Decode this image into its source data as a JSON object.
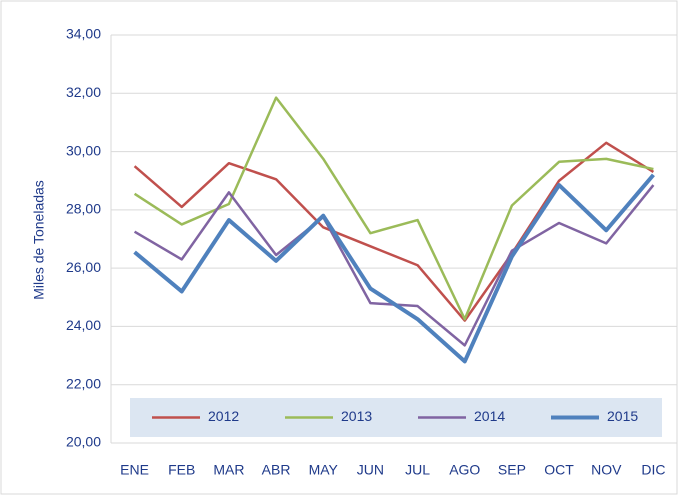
{
  "chart_data": {
    "type": "line",
    "y_label": "Miles de Toneladas",
    "categories": [
      "ENE",
      "FEB",
      "MAR",
      "ABR",
      "MAY",
      "JUN",
      "JUL",
      "AGO",
      "SEP",
      "OCT",
      "NOV",
      "DIC"
    ],
    "series": [
      {
        "name": "2012",
        "color": "#c0504d",
        "values": [
          29.5,
          28.1,
          29.6,
          29.05,
          27.4,
          26.75,
          26.1,
          24.2,
          26.5,
          29.0,
          30.3,
          29.3
        ]
      },
      {
        "name": "2013",
        "color": "#9bbb59",
        "values": [
          28.55,
          27.5,
          28.2,
          31.85,
          29.75,
          27.2,
          27.65,
          24.25,
          28.15,
          29.65,
          29.75,
          29.4
        ]
      },
      {
        "name": "2014",
        "color": "#8064a2",
        "values": [
          27.25,
          26.3,
          28.6,
          26.45,
          27.75,
          24.8,
          24.7,
          23.35,
          26.6,
          27.55,
          26.85,
          28.85
        ]
      },
      {
        "name": "2015",
        "color": "#4f81bd",
        "values": [
          26.55,
          25.2,
          27.65,
          26.25,
          27.8,
          25.3,
          24.25,
          22.8,
          26.4,
          28.85,
          27.3,
          29.2
        ]
      }
    ],
    "ylim": [
      20,
      34
    ],
    "yticks": [
      {
        "value": 20,
        "label": "20,00"
      },
      {
        "value": 22,
        "label": "22,00"
      },
      {
        "value": 24,
        "label": "24,00"
      },
      {
        "value": 26,
        "label": "26,00"
      },
      {
        "value": 28,
        "label": "28,00"
      },
      {
        "value": 30,
        "label": "30,00"
      },
      {
        "value": 32,
        "label": "32,00"
      },
      {
        "value": 34,
        "label": "34,00"
      }
    ],
    "grid": true,
    "legend": "bottom"
  }
}
